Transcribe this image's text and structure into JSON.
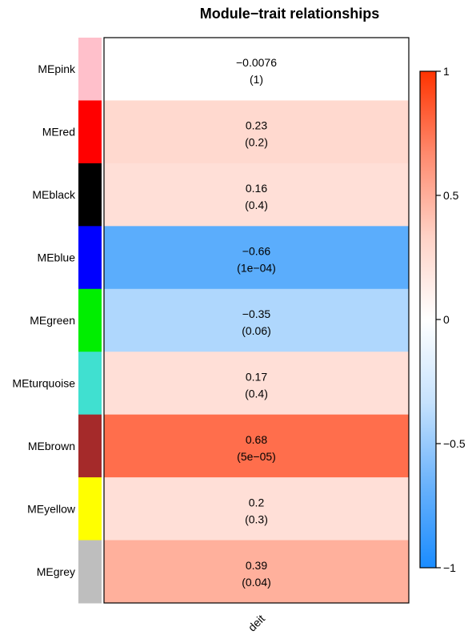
{
  "chart_data": {
    "type": "heatmap",
    "title": "Module−trait relationships",
    "traits": [
      "deit"
    ],
    "modules": [
      {
        "name": "MEpink",
        "color": "#FFC0CB",
        "corr": -0.0076,
        "corr_label": "−0.0076",
        "p_label": "(1)"
      },
      {
        "name": "MEred",
        "color": "#FF0000",
        "corr": 0.23,
        "corr_label": "0.23",
        "p_label": "(0.2)"
      },
      {
        "name": "MEblack",
        "color": "#000000",
        "corr": 0.16,
        "corr_label": "0.16",
        "p_label": "(0.4)"
      },
      {
        "name": "MEblue",
        "color": "#0000FF",
        "corr": -0.66,
        "corr_label": "−0.66",
        "p_label": "(1e−04)"
      },
      {
        "name": "MEgreen",
        "color": "#00EE00",
        "corr": -0.35,
        "corr_label": "−0.35",
        "p_label": "(0.06)"
      },
      {
        "name": "MEturquoise",
        "color": "#40E0D0",
        "corr": 0.17,
        "corr_label": "0.17",
        "p_label": "(0.4)"
      },
      {
        "name": "MEbrown",
        "color": "#A52A2A",
        "corr": 0.68,
        "corr_label": "0.68",
        "p_label": "(5e−05)"
      },
      {
        "name": "MEyellow",
        "color": "#FFFF00",
        "corr": 0.2,
        "corr_label": "0.2",
        "p_label": "(0.3)"
      },
      {
        "name": "MEgrey",
        "color": "#BEBEBE",
        "corr": 0.39,
        "corr_label": "0.39",
        "p_label": "(0.04)"
      }
    ],
    "cell_colors": [
      "#FFFFFF",
      "#FFD9CF",
      "#FFDFD7",
      "#5BADFC",
      "#AFD7FD",
      "#FFDFD7",
      "#FF6E4C",
      "#FFDFD7",
      "#FFB09C"
    ],
    "colorbar": {
      "range": [
        -1,
        1
      ],
      "ticks": [
        1,
        0.5,
        0,
        -0.5,
        -1
      ],
      "tick_labels": [
        "1",
        "0.5",
        "0",
        "−0.5",
        "−1"
      ],
      "gradient_top_to_bottom": [
        "#FF3300",
        "#FF8A6E",
        "#FFD2C6",
        "#FFFFFF",
        "#C6E2FD",
        "#6AB2FB",
        "#1A8CFF"
      ]
    },
    "grid": false,
    "legend": "colorbar-right"
  }
}
